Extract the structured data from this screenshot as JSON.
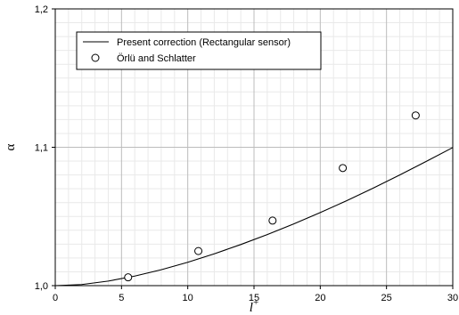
{
  "chart_data": {
    "type": "line",
    "xlabel": "l",
    "xlabel_superscript": "+",
    "ylabel": "α",
    "xlim": [
      0,
      30
    ],
    "ylim": [
      1.0,
      1.2
    ],
    "x_ticks": [
      0,
      5,
      10,
      15,
      20,
      25,
      30
    ],
    "x_tick_labels": [
      "0",
      "5",
      "10",
      "15",
      "20",
      "25",
      "30"
    ],
    "y_ticks": [
      1.0,
      1.1,
      1.2
    ],
    "y_tick_labels": [
      "1,0",
      "1,1",
      "1,2"
    ],
    "grid": true,
    "legend_position": "top-left",
    "series": [
      {
        "name": "Present correction (Rectangular sensor)",
        "kind": "line",
        "color": "#000000",
        "x": [
          0,
          2,
          4,
          6,
          8,
          10,
          12,
          14,
          16,
          18,
          20,
          22,
          24,
          26,
          28,
          30
        ],
        "y": [
          1.0,
          1.0008,
          1.0033,
          1.0069,
          1.0115,
          1.0169,
          1.023,
          1.0297,
          1.0369,
          1.0446,
          1.0528,
          1.0614,
          1.0705,
          1.08,
          1.0898,
          1.0998
        ]
      },
      {
        "name": "Örlü and Schlatter",
        "kind": "scatter",
        "marker": "open-circle",
        "color": "#000000",
        "x": [
          5.5,
          10.8,
          16.4,
          21.7,
          27.2
        ],
        "y": [
          1.006,
          1.025,
          1.047,
          1.085,
          1.123
        ]
      }
    ]
  }
}
